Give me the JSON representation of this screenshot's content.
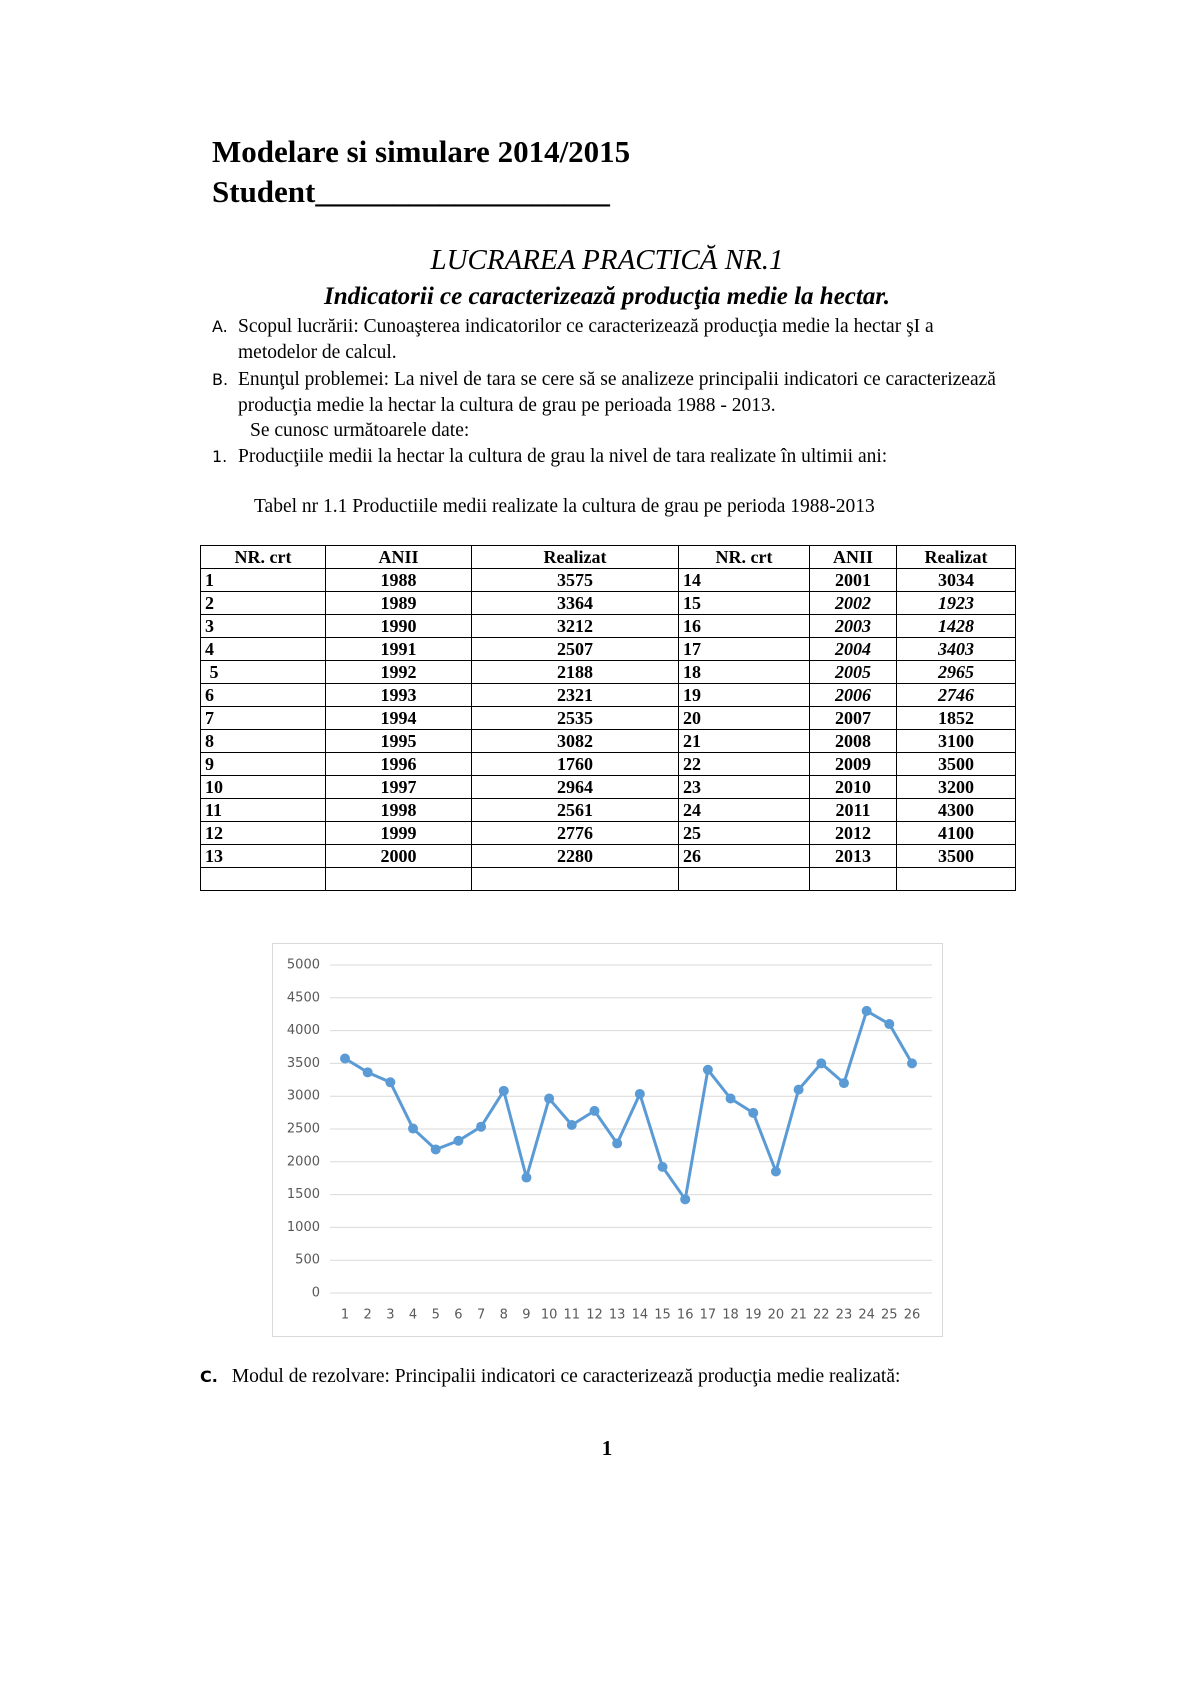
{
  "header": {
    "title": "Modelare si simulare   2014/2015",
    "student": "Student___________________"
  },
  "heading": {
    "title": "LUCRAREA PRACTICĂ NR.1",
    "subtitle": "Indicatorii  ce  caracterizează producţia  medie  la  hectar."
  },
  "items": [
    {
      "marker": "A.",
      "text": "Scopul lucrării: Cunoaşterea indicatorilor ce caracterizează producţia medie la hectar şI a metodelor de calcul."
    },
    {
      "marker": "B.",
      "text": "Enunţul problemei: La nivel de tara  se cere să se analizeze principalii indicatori ce caracterizează producţia medie la hectar la cultura de grau pe perioada 1988 - 2013."
    },
    {
      "text": "Se cunosc următoarele date:"
    },
    {
      "marker": "1.",
      "text": "Producţiile medii la hectar  la cultura de grau la nivel de tara  realizate în ultimii ani:"
    }
  ],
  "table": {
    "caption": "Tabel nr 1.1  Productiile medii realizate la cultura de grau pe perioda 1988-2013",
    "headers": [
      "NR.  crt",
      "ANII",
      "Realizat",
      "NR.  crt",
      "ANII",
      "Realizat"
    ],
    "rows": [
      [
        "1",
        "1988",
        "3575",
        "14",
        "2001",
        "3034"
      ],
      [
        "2",
        "1989",
        "3364",
        "15",
        "2002",
        "1923"
      ],
      [
        "3",
        "1990",
        "3212",
        "16",
        "2003",
        "1428"
      ],
      [
        "4",
        "1991",
        "2507",
        "17",
        "2004",
        "3403"
      ],
      [
        " 5",
        "1992",
        "2188",
        "18",
        "2005",
        "2965"
      ],
      [
        "6",
        "1993",
        "2321",
        "19",
        "2006",
        "2746"
      ],
      [
        "7",
        "1994",
        "2535",
        "20",
        "2007",
        "1852"
      ],
      [
        "8",
        "1995",
        "3082",
        "21",
        "2008",
        "3100"
      ],
      [
        "9",
        "1996",
        "1760",
        "22",
        "2009",
        "3500"
      ],
      [
        "10",
        "1997",
        "2964",
        "23",
        "2010",
        "3200"
      ],
      [
        "11",
        "1998",
        "2561",
        "24",
        "2011",
        "4300"
      ],
      [
        "12",
        "1999",
        "2776",
        "25",
        "2012",
        "4100"
      ],
      [
        "13",
        "2000",
        "2280",
        "26",
        "2013",
        "3500"
      ]
    ]
  },
  "chart_data": {
    "type": "line",
    "color": "#5b9bd5",
    "grid": true,
    "categories": [
      "1",
      "2",
      "3",
      "4",
      "5",
      "6",
      "7",
      "8",
      "9",
      "10",
      "11",
      "12",
      "13",
      "14",
      "15",
      "16",
      "17",
      "18",
      "19",
      "20",
      "21",
      "22",
      "23",
      "24",
      "25",
      "26"
    ],
    "values": [
      3575,
      3364,
      3212,
      2507,
      2188,
      2321,
      2535,
      3082,
      1760,
      2964,
      2561,
      2776,
      2280,
      3034,
      1923,
      1428,
      3403,
      2965,
      2746,
      1852,
      3100,
      3500,
      3200,
      4300,
      4100,
      3500
    ],
    "ylim": [
      0,
      5000
    ],
    "yticks": [
      0,
      500,
      1000,
      1500,
      2000,
      2500,
      3000,
      3500,
      4000,
      4500,
      5000
    ]
  },
  "section_c": {
    "marker": "C.",
    "text": "Modul de rezolvare: Principalii indicatori ce caracterizează producţia medie realizată:"
  },
  "page_number": "1"
}
